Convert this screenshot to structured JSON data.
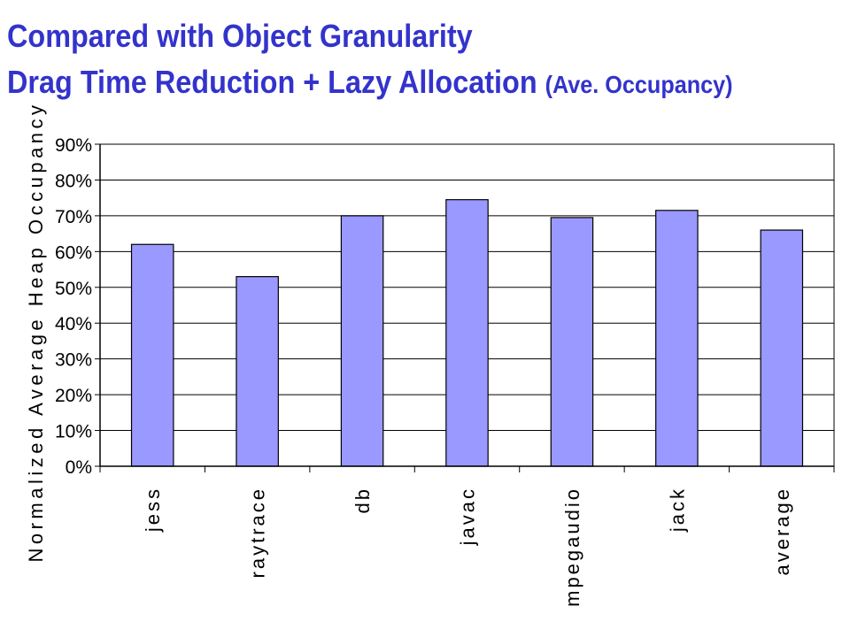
{
  "slide": {
    "title_line1": "Compared with Object Granularity",
    "title_line2_main": "Drag Time Reduction + Lazy Allocation ",
    "title_line2_small": "(Ave. Occupancy)"
  },
  "chart_data": {
    "type": "bar",
    "categories": [
      "jess",
      "raytrace",
      "db",
      "javac",
      "mpegaudio",
      "jack",
      "average"
    ],
    "values": [
      62,
      53,
      70,
      74.5,
      69.5,
      71.5,
      66
    ],
    "ylabel": "Normalized Average Heap Occupancy",
    "xlabel": "",
    "ylim": [
      0,
      90
    ],
    "yticks": [
      "0%",
      "10%",
      "20%",
      "30%",
      "40%",
      "50%",
      "60%",
      "70%",
      "80%",
      "90%"
    ],
    "grid": true,
    "bar_color": "#9999ff",
    "bar_border_color": "#000000"
  }
}
